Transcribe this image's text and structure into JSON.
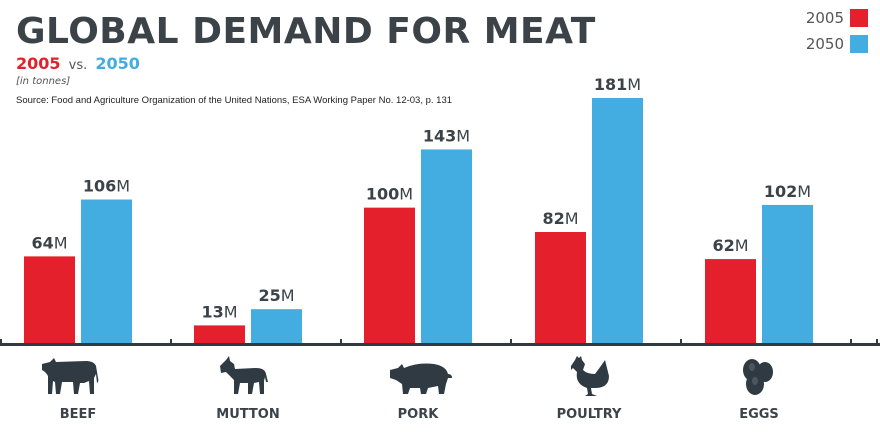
{
  "title": "GLOBAL DEMAND FOR MEAT",
  "subtitle": {
    "year1": "2005",
    "vs": "vs.",
    "year2": "2050"
  },
  "units": "[in tonnes]",
  "source": "Source: Food and Agriculture Organization of the United Nations, ESA Working Paper No. 12-03, p. 131",
  "colors": {
    "2005": "#e3202b",
    "2050": "#43ace1",
    "axis": "#2f3a42",
    "text": "#3b4349"
  },
  "legend": [
    {
      "label": "2005",
      "color": "#e3202b"
    },
    {
      "label": "2050",
      "color": "#43ace1"
    }
  ],
  "icons": [
    "cow-icon",
    "goat-icon",
    "pig-icon",
    "chicken-icon",
    "eggs-icon"
  ],
  "chart_data": {
    "type": "bar",
    "categories": [
      "BEEF",
      "MUTTON",
      "PORK",
      "POULTRY",
      "EGGS"
    ],
    "series": [
      {
        "name": "2005",
        "values": [
          64,
          13,
          100,
          82,
          62
        ]
      },
      {
        "name": "2050",
        "values": [
          106,
          25,
          143,
          181,
          102
        ]
      }
    ],
    "value_suffix": "M",
    "ylim": [
      0,
      181
    ],
    "grid": false,
    "legend_position": "top-right"
  }
}
